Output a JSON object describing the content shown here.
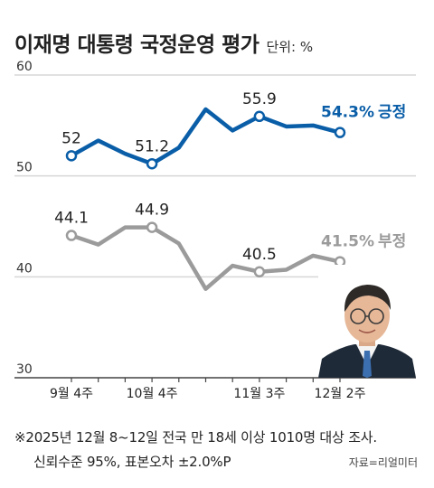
{
  "header": {
    "title": "이재명 대통령 국정운영 평가",
    "unit": "단위: %"
  },
  "chart_data": {
    "type": "line",
    "title": "이재명 대통령 국정운영 평가",
    "unit": "%",
    "ylim": [
      30,
      60
    ],
    "yticks": [
      60,
      50,
      40,
      30
    ],
    "xticks": [
      {
        "index": 0,
        "label": "9월 4주"
      },
      {
        "index": 3,
        "label": "10월 4주"
      },
      {
        "index": 7,
        "label": "11월 3주"
      },
      {
        "index": 10,
        "label": "12월 2주"
      }
    ],
    "grid": true,
    "colors": {
      "positive": "#0a5ea8",
      "negative": "#9b9b9b",
      "grid": "#d7d7d7"
    },
    "series": [
      {
        "name": "긍정",
        "values": [
          52.0,
          53.5,
          52.2,
          51.2,
          52.8,
          56.6,
          54.5,
          55.9,
          54.9,
          55.0,
          54.3
        ],
        "labels": [
          {
            "index": 0,
            "text": "52"
          },
          {
            "index": 3,
            "text": "51.2"
          },
          {
            "index": 7,
            "text": "55.9"
          }
        ],
        "end_label": "54.3%",
        "name_label": "긍정"
      },
      {
        "name": "부정",
        "values": [
          44.1,
          43.2,
          44.9,
          44.9,
          43.3,
          38.8,
          41.1,
          40.5,
          40.7,
          42.1,
          41.5
        ],
        "labels": [
          {
            "index": 0,
            "text": "44.1"
          },
          {
            "index": 3,
            "text": "44.9"
          },
          {
            "index": 7,
            "text": "40.5"
          }
        ],
        "end_label": "41.5%",
        "name_label": "부정"
      }
    ]
  },
  "footnote": {
    "line1": "※2025년 12월 8~12일 전국 만 18세 이상 1010명 대상 조사.",
    "line2": "신뢰수준 95%, 표본오차 ±2.0%P",
    "source": "자료=리얼미터"
  }
}
